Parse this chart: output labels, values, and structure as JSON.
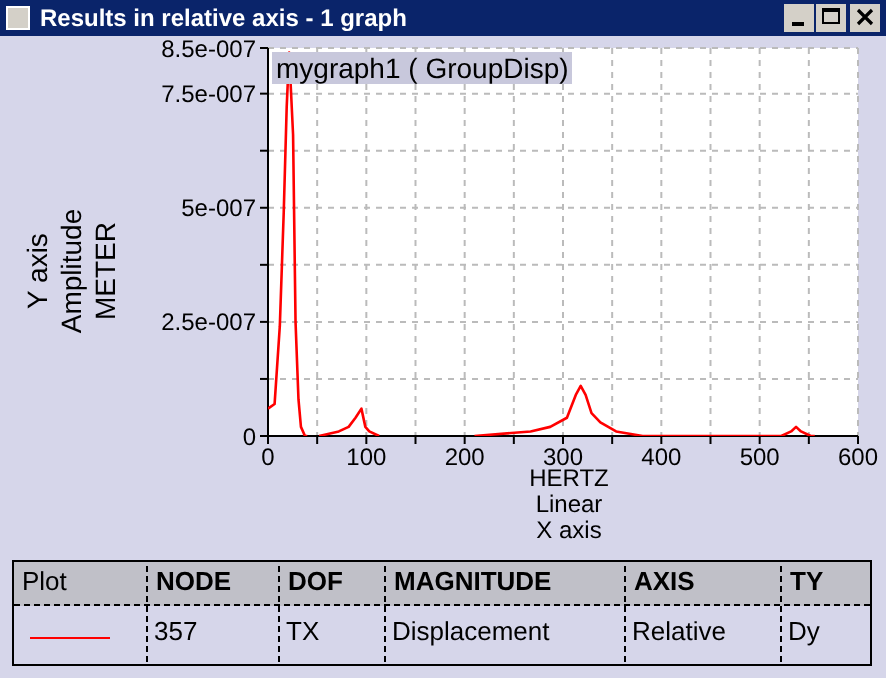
{
  "chart_data": {
    "type": "line",
    "title": "Results in relative axis - 1 graph",
    "subtitle": "mygraph1 ( GroupDisp)",
    "xlabel": "HERTZ\nLinear\nX axis",
    "ylabel": "Y axis\nAmplitude\nMETER",
    "x": [
      0,
      6.7,
      12,
      16,
      19,
      21.5,
      25.5,
      28,
      31,
      33.5,
      37.6,
      40,
      45,
      52,
      72,
      82,
      89,
      95,
      99,
      103,
      113,
      160,
      210,
      267,
      287,
      304,
      313,
      318,
      323,
      329,
      338,
      354,
      381,
      401,
      522,
      532,
      537,
      542,
      552,
      556
    ],
    "series": [
      {
        "color": "#ff0000",
        "values": [
          6e-08,
          7e-08,
          2.4e-07,
          4.9e-07,
          7.2e-07,
          8.4e-07,
          6.6e-07,
          2.5e-07,
          8e-08,
          2e-08,
          0,
          0,
          null,
          0,
          1e-08,
          2e-08,
          4e-08,
          6e-08,
          2e-08,
          1e-08,
          0,
          null,
          0,
          1e-08,
          2e-08,
          4e-08,
          9e-08,
          1.1e-07,
          9e-08,
          5e-08,
          3e-08,
          1e-08,
          0,
          0,
          0,
          1e-08,
          2e-08,
          1e-08,
          0,
          0
        ]
      }
    ],
    "xlim": [
      0,
      600
    ],
    "xticks": [
      0,
      {
        "value": 50,
        "label": null
      },
      100,
      {
        "value": 150,
        "label": null
      },
      200,
      {
        "value": 250,
        "label": null
      },
      300,
      {
        "value": 350,
        "label": null
      },
      400,
      {
        "value": 450,
        "label": null
      },
      500,
      {
        "value": 550,
        "label": null
      },
      600
    ],
    "ylim": [
      0,
      8.5e-07
    ],
    "yticks": [
      0,
      {
        "value": 1.25e-07,
        "label": null
      },
      {
        "value": 2.5e-07,
        "label": "2.5e-007"
      },
      {
        "value": 3.75e-07,
        "label": null
      },
      {
        "value": 5e-07,
        "label": "5e-007"
      },
      {
        "value": 6.25e-07,
        "label": null
      },
      {
        "value": 7.5e-07,
        "label": "7.5e-007"
      },
      {
        "value": 8.5e-07,
        "label": "8.5e-007"
      }
    ],
    "grid": true,
    "line_style": "solid",
    "marker": "none",
    "annotations": [
      "Plot",
      "NODE",
      "DOF",
      "MAGNITUDE",
      "AXIS",
      "TY",
      "357",
      "TX",
      "Displacement",
      "Relative",
      "Dy"
    ]
  }
}
